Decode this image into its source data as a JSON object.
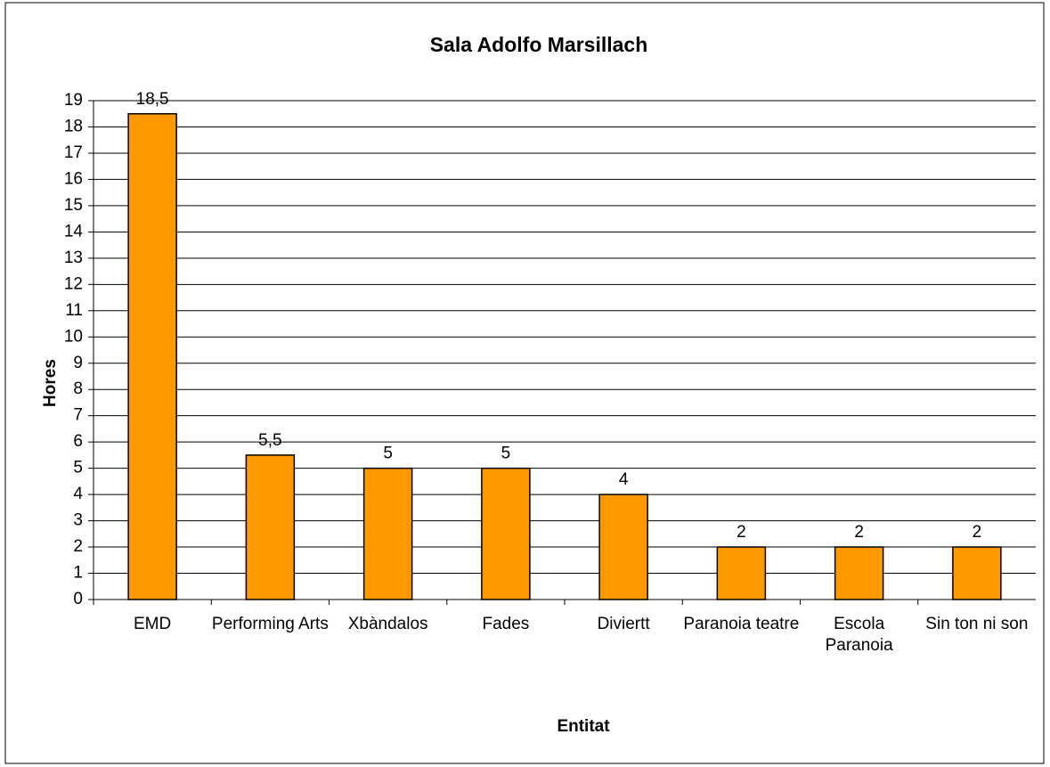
{
  "chart_data": {
    "type": "bar",
    "title": "Sala Adolfo  Marsillach",
    "x_label": "Entitat",
    "y_label": "Hores",
    "categories": [
      "EMD",
      "Performing Arts",
      "Xbàndalos",
      "Fades",
      "Diviertt",
      "Paranoia teatre",
      "Escola Paranoia",
      "Sin ton ni son"
    ],
    "values": [
      18.5,
      5.5,
      5,
      5,
      4,
      2,
      2,
      2
    ],
    "value_labels": [
      "18,5",
      "5,5",
      "5",
      "5",
      "4",
      "2",
      "2",
      "2"
    ],
    "color": "#ff9900",
    "ylim": [
      0,
      19
    ],
    "yticks": [
      0,
      1,
      2,
      3,
      4,
      5,
      6,
      7,
      8,
      9,
      10,
      11,
      12,
      13,
      14,
      15,
      16,
      17,
      18,
      19
    ],
    "grid": true
  }
}
